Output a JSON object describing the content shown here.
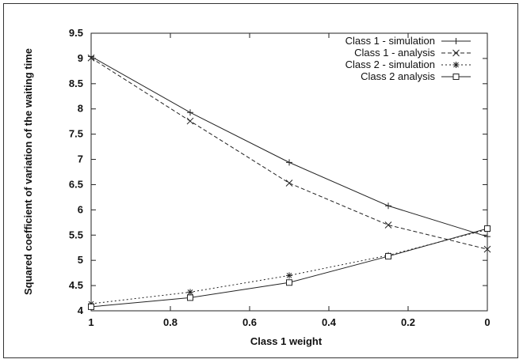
{
  "chart_data": {
    "type": "line",
    "title": "",
    "xlabel": "Class 1 weight",
    "ylabel": "Squared coefficient of variation of the waiting time",
    "x": [
      1,
      0.75,
      0.5,
      0.25,
      0
    ],
    "xlim": [
      1,
      0
    ],
    "ylim": [
      4,
      9.5
    ],
    "xticks": [
      "1",
      "0.8",
      "0.6",
      "0.4",
      "0.2",
      "0"
    ],
    "xtick_values": [
      1,
      0.8,
      0.6,
      0.4,
      0.2,
      0
    ],
    "yticks": [
      "4",
      "4.5",
      "5",
      "5.5",
      "6",
      "6.5",
      "7",
      "7.5",
      "8",
      "8.5",
      "9",
      "9.5"
    ],
    "ytick_values": [
      4,
      4.5,
      5,
      5.5,
      6,
      6.5,
      7,
      7.5,
      8,
      8.5,
      9,
      9.5
    ],
    "grid": false,
    "legend_position": "top-right",
    "series": [
      {
        "name": "Class 1 - simulation",
        "values": [
          9.04,
          7.93,
          6.94,
          6.08,
          5.47
        ],
        "marker": "plus",
        "dash": "solid"
      },
      {
        "name": "Class 1 - analysis",
        "values": [
          9.01,
          7.76,
          6.53,
          5.7,
          5.22
        ],
        "marker": "x",
        "dash": "dashed"
      },
      {
        "name": "Class 2 - simulation",
        "values": [
          4.14,
          4.37,
          4.7,
          5.1,
          5.61
        ],
        "marker": "star",
        "dash": "dotted"
      },
      {
        "name": "Class 2 analysis",
        "values": [
          4.08,
          4.26,
          4.56,
          5.08,
          5.63
        ],
        "marker": "square",
        "dash": "solid"
      }
    ]
  }
}
